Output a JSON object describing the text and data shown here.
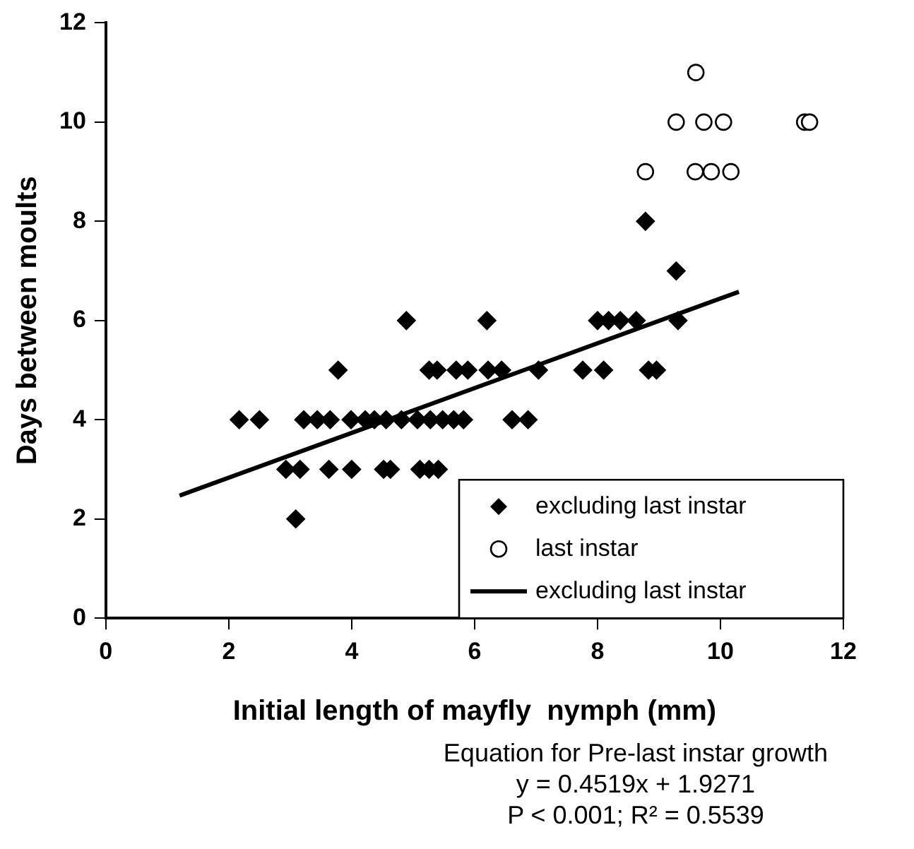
{
  "chart_data": {
    "type": "scatter",
    "xlabel": "Initial length of mayfly  nymph (mm)",
    "ylabel": "Days between moults",
    "xlim": [
      0,
      12
    ],
    "xticks": [
      0,
      2,
      4,
      6,
      8,
      10,
      12
    ],
    "ylim": [
      0,
      12
    ],
    "yticks": [
      0,
      2,
      4,
      6,
      8,
      10,
      12
    ],
    "grid": false,
    "legend": "bottom right",
    "series": [
      {
        "name": "excluding last instar",
        "marker": "diamond",
        "color": "#000000",
        "x": [
          2.17,
          2.5,
          3.22,
          3.44,
          3.65,
          3.99,
          4.22,
          4.37,
          4.56,
          4.81,
          5.07,
          5.28,
          5.48,
          5.66,
          5.82,
          6.61,
          6.87,
          2.93,
          3.16,
          3.63,
          4.0,
          4.52,
          4.63,
          5.11,
          5.26,
          5.41,
          3.09,
          3.78,
          5.26,
          5.39,
          5.7,
          5.89,
          6.22,
          6.44,
          7.04,
          7.76,
          8.1,
          8.83,
          8.96,
          4.89,
          6.2,
          8.0,
          8.18,
          8.37,
          8.63,
          9.31,
          9.28,
          8.78
        ],
        "values": [
          4,
          4,
          4,
          4,
          4,
          4,
          4,
          4,
          4,
          4,
          4,
          4,
          4,
          4,
          4,
          4,
          4,
          3,
          3,
          3,
          3,
          3,
          3,
          3,
          3,
          3,
          2,
          5,
          5,
          5,
          5,
          5,
          5,
          5,
          5,
          5,
          5,
          5,
          5,
          6,
          6,
          6,
          6,
          6,
          6,
          6,
          7,
          8
        ]
      },
      {
        "name": "last instar",
        "marker": "circle",
        "color": "#000000",
        "x": [
          8.78,
          9.59,
          9.85,
          10.17,
          9.28,
          9.73,
          10.05,
          11.37,
          11.45,
          9.6
        ],
        "values": [
          9,
          9,
          9,
          9,
          10,
          10,
          10,
          10,
          10,
          11
        ]
      },
      {
        "name": "excluding last instar",
        "type": "line",
        "marker": "none",
        "line_style": "solid",
        "color": "#000000",
        "x": [
          1.2,
          10.3
        ],
        "values": [
          2.47,
          6.58
        ]
      }
    ],
    "annotations": [
      "Equation for Pre-last instar growth",
      "y = 0.4519x + 1.9271",
      "P < 0.001; R² = 0.5539"
    ]
  }
}
